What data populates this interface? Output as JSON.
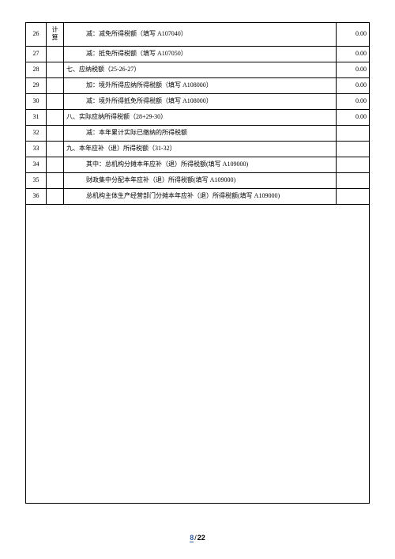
{
  "table": {
    "calc_label": "计算",
    "rows": [
      {
        "num": "26",
        "desc": "减：减免所得税额（填写 A107040）",
        "val": "0.00",
        "indent": "indent2",
        "showCalc": true
      },
      {
        "num": "27",
        "desc": "减：抵免所得税额（填写 A107050）",
        "val": "0.00",
        "indent": "indent2",
        "showCalc": false
      },
      {
        "num": "28",
        "desc": "七、应纳税额（25-26-27）",
        "val": "0.00",
        "indent": "",
        "showCalc": false
      },
      {
        "num": "29",
        "desc": "加：境外所得应纳所得税额（填写 A108000）",
        "val": "0.00",
        "indent": "indent2",
        "showCalc": false
      },
      {
        "num": "30",
        "desc": "减：境外所得抵免所得税额（填写 A108000）",
        "val": "0.00",
        "indent": "indent2",
        "showCalc": false
      },
      {
        "num": "31",
        "desc": "八、实际应纳所得税额（28+29-30）",
        "val": "0.00",
        "indent": "",
        "showCalc": false
      },
      {
        "num": "32",
        "desc": "减：本年累计实际已缴纳的所得税额",
        "val": "",
        "indent": "indent2",
        "showCalc": false
      },
      {
        "num": "33",
        "desc": "九、本年应补（退）所得税额（31-32）",
        "val": "",
        "indent": "",
        "showCalc": false
      },
      {
        "num": "34",
        "desc": "其中：总机构分摊本年应补（退）所得税额(填写 A109000)",
        "val": "",
        "indent": "indent2",
        "showCalc": false
      },
      {
        "num": "35",
        "desc": "财政集中分配本年应补（退）所得税额(填写 A109000)",
        "val": "",
        "indent": "indent2",
        "showCalc": false
      },
      {
        "num": "36",
        "desc": "总机构主体生产经营部门分摊本年应补（退）所得税额(填写 A109000)",
        "val": "",
        "indent": "indent2",
        "showCalc": false
      }
    ]
  },
  "footer": {
    "current": "8",
    "total": "22"
  }
}
